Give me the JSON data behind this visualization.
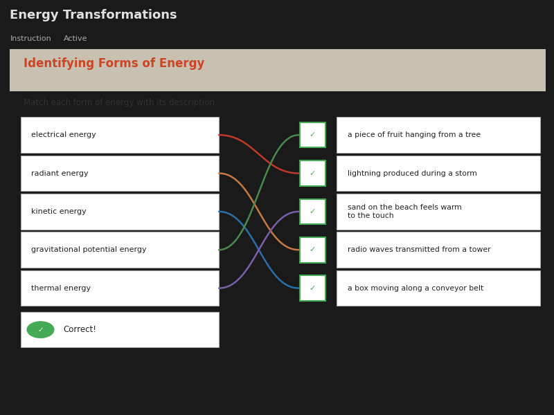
{
  "title": "Energy Transformations",
  "subtitle_left": "Instruction",
  "subtitle_right": "Active",
  "heading": "Identifying Forms of Energy",
  "instruction": "Match each form of energy with its description.",
  "left_labels": [
    "electrical energy",
    "radiant energy",
    "kinetic energy",
    "gravitational potential energy",
    "thermal energy"
  ],
  "right_labels": [
    "a piece of fruit hanging from a tree",
    "lightning produced during a storm",
    "sand on the beach feels warm\nto the touch",
    "radio waves transmitted from a tower",
    "a box moving along a conveyor belt"
  ],
  "connections": [
    [
      0,
      1,
      "#c0392b"
    ],
    [
      1,
      3,
      "#c87941"
    ],
    [
      2,
      4,
      "#2a6faa"
    ],
    [
      3,
      0,
      "#4a8a4a"
    ],
    [
      4,
      2,
      "#7a5faa"
    ]
  ],
  "bg_top_color": "#1a1a1a",
  "bg_bottom_color": "#3a3f5a",
  "panel_bg": "#ddd8cc",
  "panel_header_bg": "#c8c0b0",
  "title_color": "#e0e0e0",
  "subtitle_color": "#aaaaaa",
  "heading_color": "#cc4422",
  "body_text_color": "#222222",
  "instruction_color": "#333333",
  "check_color": "#44aa55",
  "check_bg": "#ffffff",
  "correct_color": "#44aa55",
  "box_edge_color": "#aaaaaa",
  "correct_label": "Correct!"
}
